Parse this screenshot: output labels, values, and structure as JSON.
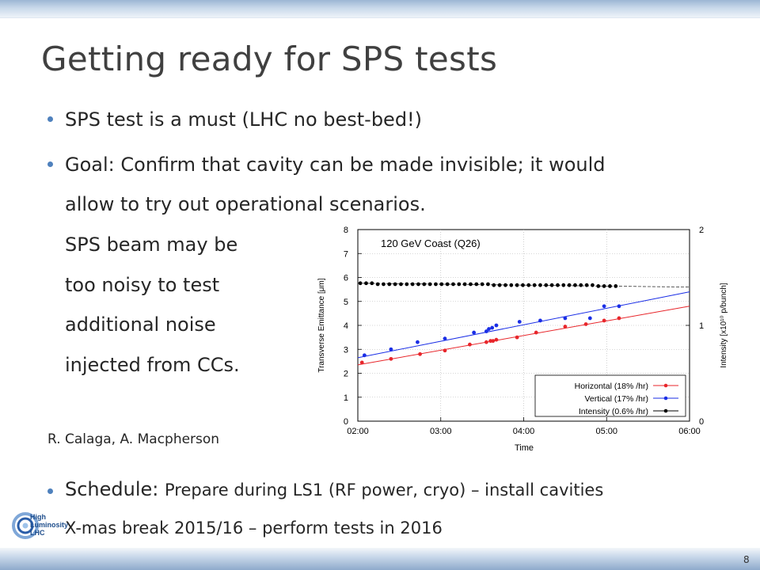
{
  "slide": {
    "title": "Getting ready for SPS tests",
    "bullets": {
      "b1": "SPS test is a must (LHC no best-bed!)",
      "b2_l1": "Goal: Confirm that cavity can be made invisible; it would",
      "b2_l2": "allow to try out operational scenarios.",
      "b2_l3": "SPS beam may be",
      "b2_l4": "too noisy to test",
      "b2_l5": "additional noise",
      "b2_l6": "injected from CCs.",
      "b3_head": "Schedule:",
      "b3_l1": "Prepare during LS1 (RF power, cryo) – install cavities",
      "b3_l2": "X-mas break 2015/16 – perform tests in 2016"
    },
    "credit": "R. Calaga, A. Macpherson",
    "page_number": "8",
    "logo": {
      "line1": "High",
      "line2": "Luminosity",
      "line3": "LHC"
    },
    "colors": {
      "accent": "#4f81bd",
      "horizontal": "#e8262b",
      "vertical": "#1a2ee6",
      "intensity": "#000000"
    }
  },
  "chart_data": {
    "type": "scatter",
    "title": "120 GeV Coast (Q26)",
    "xlabel": "Time",
    "ylabel": "Transverse Emittance [μm]",
    "y2label": "Intensity [x10¹⁰ p/bunch]",
    "x_ticks": [
      "02:00",
      "03:00",
      "04:00",
      "05:00",
      "06:00"
    ],
    "xlim": [
      2.0,
      6.0
    ],
    "ylim": [
      0,
      8
    ],
    "y_ticks": [
      "0",
      "1",
      "2",
      "3",
      "4",
      "5",
      "6",
      "7",
      "8"
    ],
    "y2lim": [
      0,
      2
    ],
    "y2_ticks": [
      "0",
      "1",
      "2"
    ],
    "grid": "dashed",
    "legend_position": "bottom-right",
    "series": [
      {
        "name": "Horizontal (18% /hr)",
        "color": "#e8262b",
        "axis": "left",
        "x": [
          2.05,
          2.4,
          2.75,
          3.05,
          3.35,
          3.55,
          3.6,
          3.63,
          3.67,
          3.92,
          4.15,
          4.5,
          4.75,
          4.97,
          5.15
        ],
        "y": [
          2.45,
          2.6,
          2.8,
          2.95,
          3.2,
          3.3,
          3.35,
          3.35,
          3.4,
          3.5,
          3.7,
          3.95,
          4.05,
          4.2,
          4.3
        ],
        "fit": {
          "x": [
            2.0,
            6.0
          ],
          "y": [
            2.35,
            4.8
          ]
        }
      },
      {
        "name": "Vertical (17% /hr)",
        "color": "#1a2ee6",
        "axis": "left",
        "x": [
          2.08,
          2.4,
          2.72,
          3.05,
          3.4,
          3.55,
          3.58,
          3.62,
          3.67,
          3.95,
          4.2,
          4.5,
          4.8,
          4.97,
          5.15
        ],
        "y": [
          2.75,
          3.0,
          3.3,
          3.45,
          3.7,
          3.75,
          3.85,
          3.9,
          4.0,
          4.15,
          4.2,
          4.3,
          4.3,
          4.8,
          4.8
        ],
        "fit": {
          "x": [
            2.0,
            6.0
          ],
          "y": [
            2.65,
            5.4
          ]
        }
      },
      {
        "name": "Intensity (0.6% /hr)",
        "color": "#000000",
        "axis": "right",
        "x": [
          2.03,
          2.1,
          2.17,
          2.24,
          2.31,
          2.38,
          2.45,
          2.52,
          2.59,
          2.66,
          2.73,
          2.8,
          2.87,
          2.94,
          3.01,
          3.08,
          3.15,
          3.22,
          3.29,
          3.36,
          3.43,
          3.5,
          3.57,
          3.64,
          3.71,
          3.78,
          3.85,
          3.92,
          3.99,
          4.06,
          4.13,
          4.2,
          4.27,
          4.34,
          4.41,
          4.48,
          4.55,
          4.62,
          4.69,
          4.76,
          4.83,
          4.9,
          4.97,
          5.04,
          5.11
        ],
        "y": [
          1.44,
          1.44,
          1.44,
          1.43,
          1.43,
          1.43,
          1.43,
          1.43,
          1.43,
          1.43,
          1.43,
          1.43,
          1.43,
          1.43,
          1.43,
          1.43,
          1.43,
          1.43,
          1.43,
          1.43,
          1.43,
          1.43,
          1.43,
          1.42,
          1.42,
          1.42,
          1.42,
          1.42,
          1.42,
          1.42,
          1.42,
          1.42,
          1.42,
          1.42,
          1.42,
          1.42,
          1.42,
          1.42,
          1.42,
          1.42,
          1.42,
          1.41,
          1.41,
          1.41,
          1.41
        ],
        "fit": {
          "x": [
            2.0,
            6.0
          ],
          "y": [
            1.44,
            1.4
          ]
        }
      }
    ]
  }
}
